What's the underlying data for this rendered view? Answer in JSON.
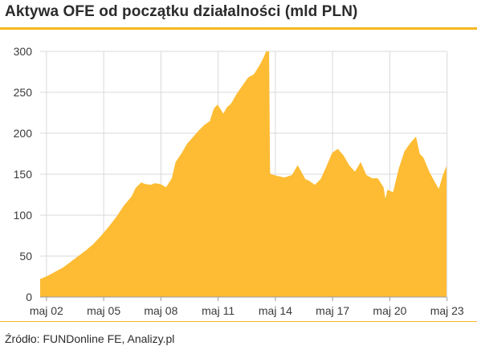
{
  "title": "Aktywa OFE od początku działalności (mld PLN)",
  "source": "Źródło: FUNDonline FE, Analizy.pl",
  "colors": {
    "fill": "#fdbc33",
    "accent": "#f4b71f",
    "grid": "#d9d9d9"
  },
  "chart_data": {
    "type": "area",
    "title": "Aktywa OFE od początku działalności (mld PLN)",
    "xlabel": "",
    "ylabel": "",
    "ylim": [
      0,
      300
    ],
    "xlim": [
      2002.0,
      2023.3
    ],
    "yticks": [
      0,
      50,
      100,
      150,
      200,
      250,
      300
    ],
    "xticks": [
      {
        "label": "maj 02",
        "x": 2002.33
      },
      {
        "label": "maj 05",
        "x": 2005.33
      },
      {
        "label": "maj 08",
        "x": 2008.33
      },
      {
        "label": "maj 11",
        "x": 2011.33
      },
      {
        "label": "maj 14",
        "x": 2014.33
      },
      {
        "label": "maj 17",
        "x": 2017.33
      },
      {
        "label": "maj 20",
        "x": 2020.33
      },
      {
        "label": "maj 23",
        "x": 2023.33
      }
    ],
    "grid": true,
    "legend": "none",
    "series": [
      {
        "x": [
          2002.0,
          2002.4,
          2002.8,
          2003.2,
          2003.6,
          2004.0,
          2004.4,
          2004.8,
          2005.2,
          2005.6,
          2006.0,
          2006.4,
          2006.8,
          2007.0,
          2007.3,
          2007.5,
          2007.8,
          2008.0,
          2008.3,
          2008.6,
          2008.9,
          2009.1,
          2009.4,
          2009.7,
          2010.0,
          2010.3,
          2010.6,
          2010.9,
          2011.1,
          2011.3,
          2011.6,
          2011.8,
          2012.0,
          2012.3,
          2012.6,
          2012.9,
          2013.2,
          2013.5,
          2013.7,
          2013.85,
          2014.0,
          2014.05,
          2014.1,
          2014.4,
          2014.8,
          2015.2,
          2015.5,
          2015.9,
          2016.1,
          2016.4,
          2016.7,
          2017.0,
          2017.3,
          2017.6,
          2017.9,
          2018.2,
          2018.5,
          2018.8,
          2019.1,
          2019.4,
          2019.7,
          2020.0,
          2020.1,
          2020.2,
          2020.5,
          2020.8,
          2021.1,
          2021.4,
          2021.7,
          2021.9,
          2022.1,
          2022.4,
          2022.7,
          2022.9,
          2023.1,
          2023.3
        ],
        "y": [
          22,
          26,
          31,
          36,
          43,
          50,
          57,
          65,
          75,
          86,
          98,
          112,
          123,
          133,
          140,
          138,
          137,
          139,
          138,
          134,
          145,
          165,
          175,
          187,
          195,
          203,
          210,
          215,
          230,
          235,
          224,
          232,
          236,
          248,
          258,
          268,
          272,
          283,
          292,
          301,
          303,
          152,
          150,
          148,
          146,
          149,
          161,
          144,
          142,
          137,
          144,
          159,
          176,
          181,
          173,
          161,
          153,
          165,
          149,
          145,
          145,
          134,
          120,
          131,
          128,
          157,
          178,
          188,
          196,
          175,
          170,
          153,
          140,
          132,
          148,
          160
        ]
      }
    ]
  }
}
